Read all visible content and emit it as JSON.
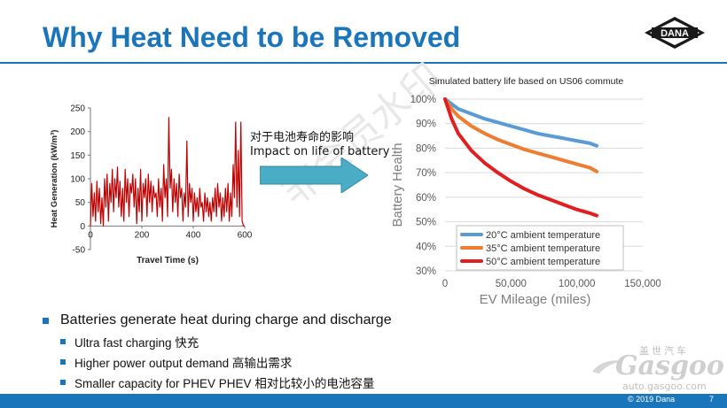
{
  "slide": {
    "title": "Why Heat Need to be Removed",
    "logo_text": "DANA",
    "page_number": "7",
    "copyright": "© 2019 Dana",
    "watermark": "非会员水印"
  },
  "arrow": {
    "label_cn": "对于电池寿命的影响",
    "label_en": "Impact on life of battery"
  },
  "bullets": [
    {
      "text": "Batteries generate heat during charge and discharge",
      "sub": [
        "Ultra fast charging 快充",
        "Higher power output demand 高输出需求",
        "Smaller capacity for PHEV PHEV 相对比较小的电池容量"
      ]
    }
  ],
  "gasgoo": {
    "top": "盖世汽车",
    "name": "Gasgoo",
    "url": "auto.gasgoo.com"
  },
  "colors": {
    "accent": "#1b75bb",
    "heat_line": "#c00000",
    "arrow_fill": "#4bacc6",
    "c20": "#5b9bd5",
    "c35": "#ed7d31",
    "c50": "#e02020"
  },
  "chart_data": [
    {
      "type": "line",
      "title": "",
      "xlabel": "Travel Time (s)",
      "ylabel": "Heat Generation (kW/m³)",
      "xlim": [
        0,
        600
      ],
      "ylim": [
        -50,
        250
      ],
      "xticks": [
        "0",
        "200",
        "400",
        "600"
      ],
      "yticks": [
        "250",
        "200",
        "150",
        "100",
        "50",
        "0",
        "-50"
      ],
      "series": [
        {
          "x": [
            0,
            5,
            10,
            15,
            20,
            25,
            30,
            35,
            40,
            45,
            50,
            55,
            60,
            65,
            70,
            75,
            80,
            85,
            90,
            95,
            100,
            105,
            110,
            115,
            120,
            125,
            130,
            135,
            140,
            145,
            150,
            155,
            160,
            165,
            170,
            175,
            180,
            185,
            190,
            195,
            200,
            205,
            210,
            215,
            220,
            225,
            230,
            235,
            240,
            245,
            250,
            255,
            260,
            265,
            270,
            275,
            280,
            285,
            290,
            295,
            300,
            305,
            310,
            315,
            320,
            325,
            330,
            335,
            340,
            345,
            350,
            355,
            360,
            365,
            370,
            375,
            380,
            385,
            390,
            395,
            400,
            405,
            410,
            415,
            420,
            425,
            430,
            435,
            440,
            445,
            450,
            455,
            460,
            465,
            470,
            475,
            480,
            485,
            490,
            495,
            500,
            505,
            510,
            515,
            520,
            525,
            530,
            535,
            540,
            545,
            550,
            555,
            560,
            565,
            570,
            575,
            580,
            585,
            590,
            595,
            600
          ],
          "values": [
            0,
            90,
            20,
            70,
            10,
            95,
            30,
            80,
            5,
            60,
            0,
            100,
            40,
            110,
            10,
            90,
            50,
            120,
            30,
            100,
            60,
            125,
            40,
            95,
            20,
            80,
            10,
            120,
            50,
            100,
            20,
            90,
            70,
            110,
            40,
            100,
            5,
            80,
            30,
            120,
            10,
            90,
            60,
            100,
            20,
            110,
            50,
            95,
            30,
            85,
            60,
            70,
            20,
            100,
            40,
            80,
            10,
            130,
            60,
            100,
            20,
            230,
            80,
            120,
            30,
            100,
            50,
            90,
            20,
            110,
            60,
            80,
            10,
            70,
            40,
            180,
            20,
            90,
            50,
            80,
            10,
            70,
            30,
            60,
            20,
            80,
            40,
            50,
            10,
            70,
            30,
            60,
            20,
            50,
            10,
            60,
            30,
            80,
            20,
            90,
            40,
            70,
            10,
            60,
            20,
            80,
            30,
            90,
            10,
            70,
            20,
            130,
            60,
            220,
            40,
            160,
            20,
            220,
            10,
            0,
            0
          ]
        }
      ]
    },
    {
      "type": "line",
      "title": "Simulated battery life based on US06 commute",
      "xlabel": "EV Mileage (miles)",
      "ylabel": "Battery Health",
      "xlim": [
        0,
        150000
      ],
      "ylim": [
        30,
        100
      ],
      "xticks": [
        "0",
        "50,000",
        "100,000",
        "150,000"
      ],
      "yticks": [
        "100%",
        "90%",
        "80%",
        "70%",
        "60%",
        "50%",
        "40%",
        "30%"
      ],
      "legend_position": "bottom-right",
      "series": [
        {
          "name": "20°C ambient temperature",
          "x": [
            0,
            5000,
            10000,
            20000,
            30000,
            40000,
            50000,
            60000,
            70000,
            80000,
            90000,
            100000,
            110000,
            115000
          ],
          "values": [
            100,
            98,
            96,
            94,
            92,
            90.5,
            89,
            87.5,
            86,
            85,
            84,
            83,
            82,
            81
          ]
        },
        {
          "name": "35°C ambient temperature",
          "x": [
            0,
            5000,
            10000,
            20000,
            30000,
            40000,
            50000,
            60000,
            70000,
            80000,
            90000,
            100000,
            110000,
            115000
          ],
          "values": [
            100,
            96,
            93,
            89,
            86,
            83.5,
            81.5,
            79.5,
            78,
            76.5,
            75,
            73.5,
            72,
            70.5
          ]
        },
        {
          "name": "50°C ambient temperature",
          "x": [
            0,
            5000,
            10000,
            20000,
            30000,
            40000,
            50000,
            60000,
            70000,
            80000,
            90000,
            100000,
            110000,
            115000
          ],
          "values": [
            100,
            92,
            86,
            79,
            74,
            70,
            66.5,
            63.5,
            61,
            59,
            57,
            55,
            53.5,
            52.5
          ]
        }
      ]
    }
  ]
}
